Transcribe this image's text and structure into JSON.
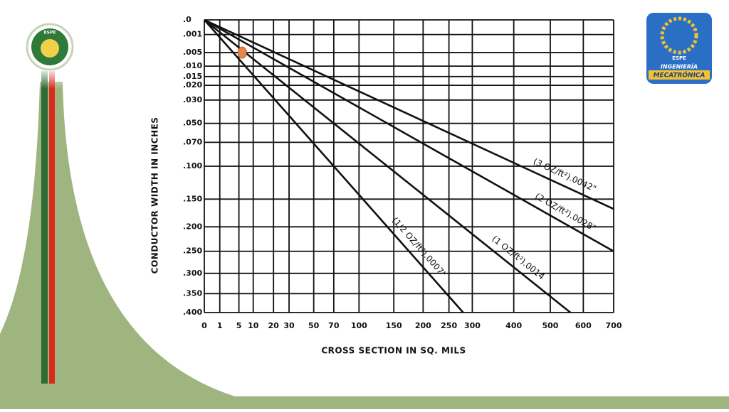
{
  "chart_data": {
    "type": "line",
    "xlabel": "CROSS SECTION IN SQ. MILS",
    "ylabel": "CONDUCTOR WIDTH IN INCHES",
    "xscale": "sqrt",
    "yscale": "sqrt",
    "y_inverted": true,
    "grid": true,
    "xlim": [
      0,
      700
    ],
    "ylim": [
      0,
      0.4
    ],
    "xticks": [
      0,
      1,
      5,
      10,
      20,
      30,
      50,
      70,
      100,
      150,
      200,
      250,
      300,
      400,
      500,
      600,
      700
    ],
    "yticks": [
      {
        "value": 0,
        "label": ".0"
      },
      {
        "value": 0.001,
        "label": ".001"
      },
      {
        "value": 0.005,
        "label": ".005"
      },
      {
        "value": 0.01,
        "label": ".010"
      },
      {
        "value": 0.015,
        "label": ".015"
      },
      {
        "value": 0.02,
        "label": ".020"
      },
      {
        "value": 0.03,
        "label": ".030"
      },
      {
        "value": 0.05,
        "label": ".050"
      },
      {
        "value": 0.07,
        "label": ".070"
      },
      {
        "value": 0.1,
        "label": ".100"
      },
      {
        "value": 0.15,
        "label": ".150"
      },
      {
        "value": 0.2,
        "label": ".200"
      },
      {
        "value": 0.25,
        "label": ".250"
      },
      {
        "value": 0.3,
        "label": ".300"
      },
      {
        "value": 0.35,
        "label": ".350"
      },
      {
        "value": 0.4,
        "label": ".400"
      }
    ],
    "series": [
      {
        "name": "(1/2 OZ/ft²).0007\"",
        "color": "#111111",
        "x": [
          0,
          280
        ],
        "values": [
          0,
          0.4
        ]
      },
      {
        "name": "(1 OZ/ft²).0014",
        "color": "#111111",
        "x": [
          0,
          560
        ],
        "values": [
          0,
          0.4
        ]
      },
      {
        "name": "(2 OZ/ft²).0028\"",
        "color": "#111111",
        "x": [
          0,
          700
        ],
        "values": [
          0,
          0.25
        ]
      },
      {
        "name": "(3 OZ/ft²).0042\"",
        "color": "#111111",
        "x": [
          0,
          700
        ],
        "values": [
          0,
          0.167
        ]
      }
    ],
    "marker": {
      "x": 6,
      "y": 0.005,
      "color": "#e8844c"
    }
  },
  "slide": {
    "left_logo": "ESPE",
    "right_logo": [
      "ESPE",
      "INGENIERÍA",
      "MECATRÓNICA"
    ]
  }
}
